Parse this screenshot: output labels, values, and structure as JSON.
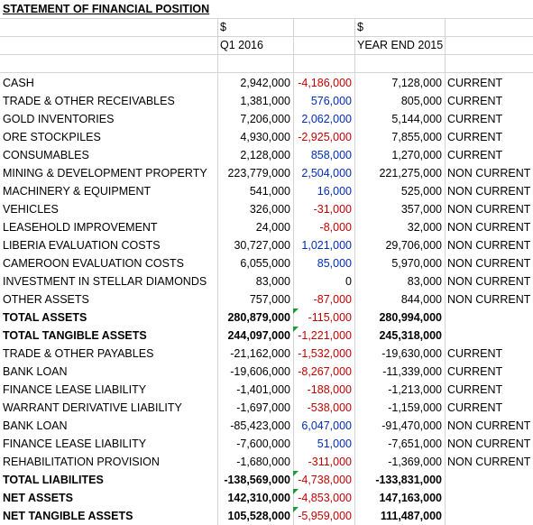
{
  "title": "STATEMENT OF FINANCIAL POSITION",
  "headers": {
    "currency_q1": "$",
    "currency_ye": "$",
    "period_q1": "Q1 2016",
    "period_ye": "YEAR END 2015"
  },
  "rows": [
    {
      "label": "CASH",
      "q1": "2,942,000",
      "change": "-4,186,000",
      "change_sign": "neg",
      "ye": "7,128,000",
      "cls": "CURRENT"
    },
    {
      "label": "TRADE & OTHER RECEIVABLES",
      "q1": "1,381,000",
      "change": "576,000",
      "change_sign": "pos",
      "ye": "805,000",
      "cls": "CURRENT"
    },
    {
      "label": "GOLD INVENTORIES",
      "q1": "7,206,000",
      "change": "2,062,000",
      "change_sign": "pos",
      "ye": "5,144,000",
      "cls": "CURRENT"
    },
    {
      "label": "ORE STOCKPILES",
      "q1": "4,930,000",
      "change": "-2,925,000",
      "change_sign": "neg",
      "ye": "7,855,000",
      "cls": "CURRENT"
    },
    {
      "label": "CONSUMABLES",
      "q1": "2,128,000",
      "change": "858,000",
      "change_sign": "pos",
      "ye": "1,270,000",
      "cls": "CURRENT"
    },
    {
      "label": "MINING & DEVELOPMENT PROPERTY",
      "q1": "223,779,000",
      "change": "2,504,000",
      "change_sign": "pos",
      "ye": "221,275,000",
      "cls": "NON CURRENT"
    },
    {
      "label": "MACHINERY & EQUIPMENT",
      "q1": "541,000",
      "change": "16,000",
      "change_sign": "pos",
      "ye": "525,000",
      "cls": "NON CURRENT"
    },
    {
      "label": "VEHICLES",
      "q1": "326,000",
      "change": "-31,000",
      "change_sign": "neg",
      "ye": "357,000",
      "cls": "NON CURRENT"
    },
    {
      "label": "LEASEHOLD IMPROVEMENT",
      "q1": "24,000",
      "change": "-8,000",
      "change_sign": "neg",
      "ye": "32,000",
      "cls": "NON CURRENT"
    },
    {
      "label": "LIBERIA EVALUATION COSTS",
      "q1": "30,727,000",
      "change": "1,021,000",
      "change_sign": "pos",
      "ye": "29,706,000",
      "cls": "NON CURRENT"
    },
    {
      "label": "CAMEROON EVALUATION COSTS",
      "q1": "6,055,000",
      "change": "85,000",
      "change_sign": "pos",
      "ye": "5,970,000",
      "cls": "NON CURRENT"
    },
    {
      "label": "INVESTMENT IN STELLAR DIAMONDS",
      "q1": "83,000",
      "change": "0",
      "change_sign": "none",
      "ye": "83,000",
      "cls": "NON CURRENT"
    },
    {
      "label": "OTHER ASSETS",
      "q1": "757,000",
      "change": "-87,000",
      "change_sign": "neg",
      "ye": "844,000",
      "cls": "NON CURRENT"
    },
    {
      "label": "TOTAL ASSETS",
      "q1": "280,879,000",
      "change": "-115,000",
      "change_sign": "neg",
      "ye": "280,994,000",
      "cls": "",
      "bold": true,
      "flag": true
    },
    {
      "label": "TOTAL TANGIBLE ASSETS",
      "q1": "244,097,000",
      "change": "-1,221,000",
      "change_sign": "neg",
      "ye": "245,318,000",
      "cls": "",
      "bold": true,
      "flag": true
    },
    {
      "label": "TRADE & OTHER PAYABLES",
      "q1": "-21,162,000",
      "change": "-1,532,000",
      "change_sign": "neg",
      "ye": "-19,630,000",
      "cls": "CURRENT"
    },
    {
      "label": "BANK LOAN",
      "q1": "-19,606,000",
      "change": "-8,267,000",
      "change_sign": "neg",
      "ye": "-11,339,000",
      "cls": "CURRENT"
    },
    {
      "label": "FINANCE LEASE LIABILITY",
      "q1": "-1,401,000",
      "change": "-188,000",
      "change_sign": "neg",
      "ye": "-1,213,000",
      "cls": "CURRENT"
    },
    {
      "label": "WARRANT DERIVATIVE LIABILITY",
      "q1": "-1,697,000",
      "change": "-538,000",
      "change_sign": "neg",
      "ye": "-1,159,000",
      "cls": "CURRENT"
    },
    {
      "label": "BANK LOAN",
      "q1": "-85,423,000",
      "change": "6,047,000",
      "change_sign": "pos",
      "ye": "-91,470,000",
      "cls": "NON CURRENT"
    },
    {
      "label": "FINANCE LEASE LIABILITY",
      "q1": "-7,600,000",
      "change": "51,000",
      "change_sign": "pos",
      "ye": "-7,651,000",
      "cls": "NON CURRENT"
    },
    {
      "label": "REHABILITATION PROVISION",
      "q1": "-1,680,000",
      "change": "-311,000",
      "change_sign": "neg",
      "ye": "-1,369,000",
      "cls": "NON CURRENT"
    },
    {
      "label": "TOTAL LIABILITES",
      "q1": "-138,569,000",
      "change": "-4,738,000",
      "change_sign": "neg",
      "ye": "-133,831,000",
      "cls": "",
      "bold": true,
      "flag": true
    },
    {
      "label": "NET ASSETS",
      "q1": "142,310,000",
      "change": "-4,853,000",
      "change_sign": "neg",
      "ye": "147,163,000",
      "cls": "",
      "bold": true,
      "flag": true
    },
    {
      "label": "NET TANGIBLE ASSETS",
      "q1": "105,528,000",
      "change": "-5,959,000",
      "change_sign": "neg",
      "ye": "111,487,000",
      "cls": "",
      "bold": true,
      "flag": true
    }
  ]
}
